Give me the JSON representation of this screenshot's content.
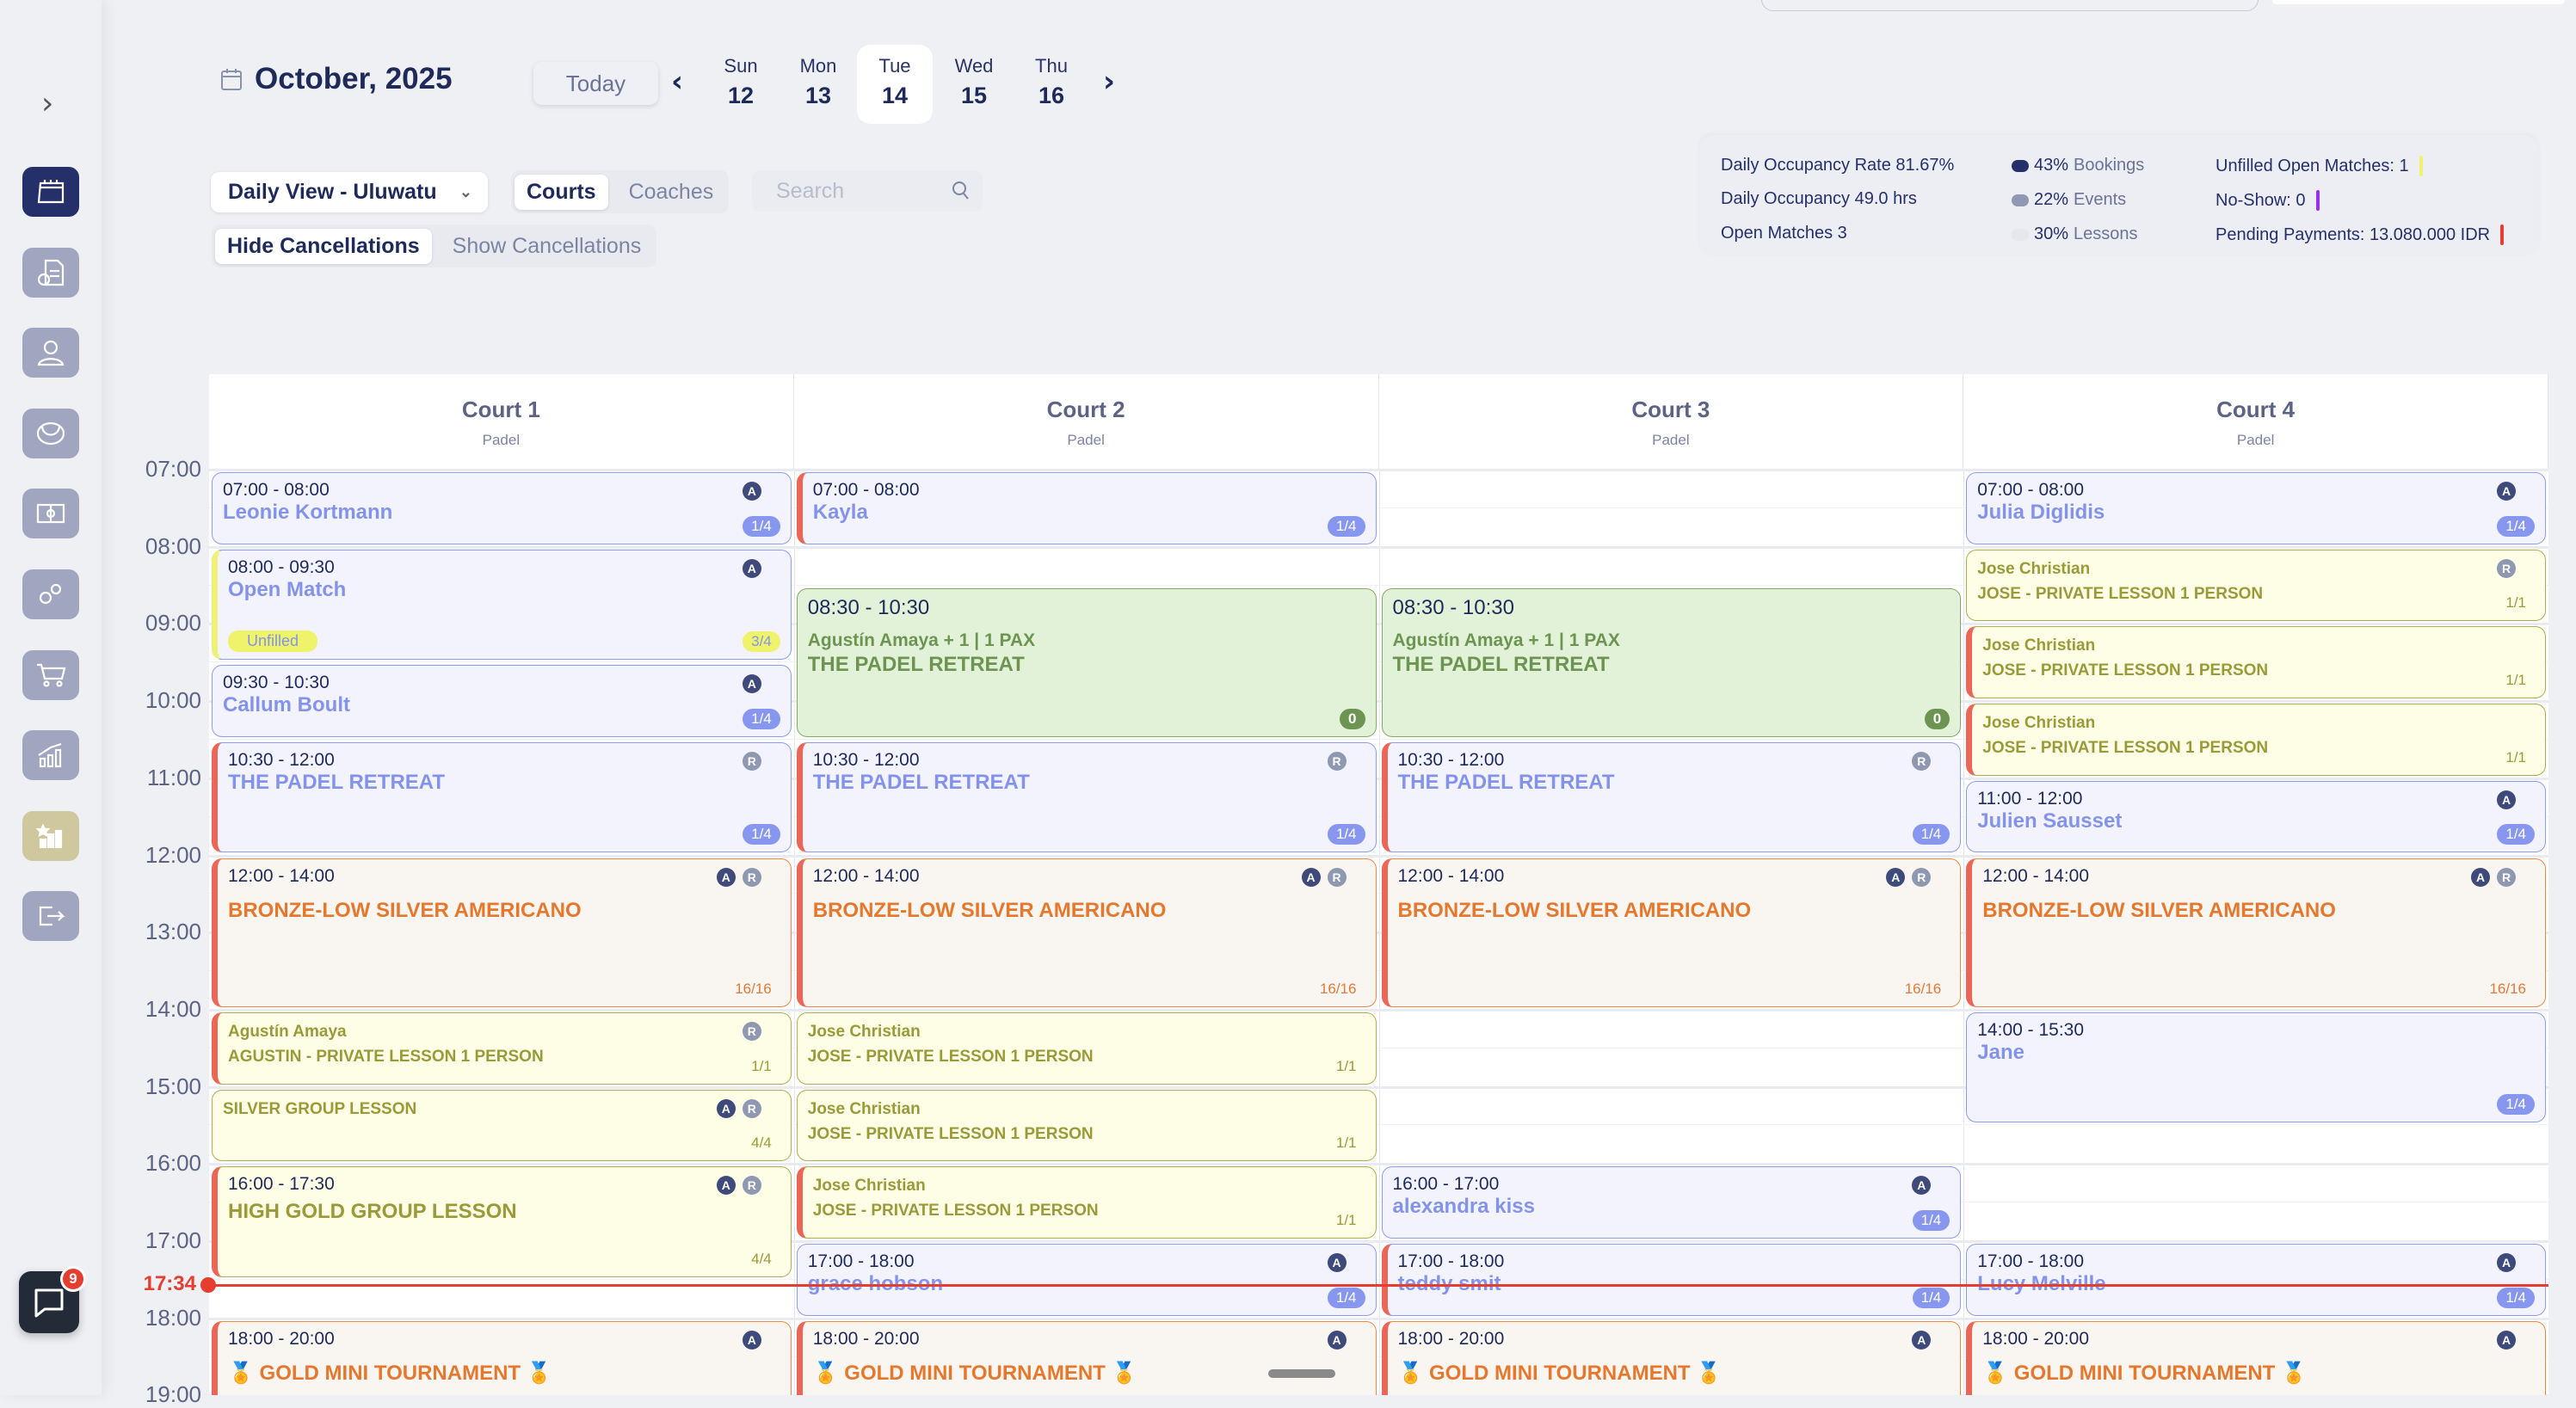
{
  "sidebar": {
    "expand_icon": "chevron-right-icon",
    "items": [
      {
        "icon": "calendar-icon",
        "active": true
      },
      {
        "icon": "invoice-icon"
      },
      {
        "icon": "user-icon"
      },
      {
        "icon": "tennis-ball-icon"
      },
      {
        "icon": "court-icon"
      },
      {
        "icon": "gears-icon"
      },
      {
        "icon": "cart-icon"
      },
      {
        "icon": "analytics-icon"
      },
      {
        "icon": "ranking-icon",
        "highlight": true
      },
      {
        "icon": "logout-icon"
      }
    ]
  },
  "header": {
    "month": "October, 2025",
    "today_label": "Today",
    "days": [
      {
        "name": "Sun",
        "date": "12"
      },
      {
        "name": "Mon",
        "date": "13"
      },
      {
        "name": "Tue",
        "date": "14",
        "selected": true
      },
      {
        "name": "Wed",
        "date": "15"
      },
      {
        "name": "Thu",
        "date": "16"
      }
    ]
  },
  "filters": {
    "view_select": "Daily View - Uluwatu",
    "mode_options": [
      "Courts",
      "Coaches"
    ],
    "mode_selected": "Courts",
    "search_placeholder": "Search",
    "cancellation_options": [
      "Hide Cancellations",
      "Show Cancellations"
    ],
    "cancellation_selected": "Hide Cancellations"
  },
  "stats": {
    "occupancy_rate": "Daily Occupancy Rate 81.67%",
    "occupancy_hours": "Daily Occupancy 49.0 hrs",
    "open_matches": "Open Matches 3",
    "breakdown": [
      {
        "pct": "43%",
        "label": "Bookings",
        "color": "#25306a"
      },
      {
        "pct": "22%",
        "label": "Events",
        "color": "#9199b2"
      },
      {
        "pct": "30%",
        "label": "Lessons",
        "color": "#e6e7ea"
      }
    ],
    "alerts": [
      {
        "text": "Unfilled Open Matches: 1",
        "color": "#eef36a"
      },
      {
        "text": "No-Show: 0",
        "color": "#9b2cf0"
      },
      {
        "text": "Pending Payments: 13.080.000 IDR",
        "color": "#e53d30"
      }
    ]
  },
  "courts": [
    {
      "name": "Court 1",
      "type": "Padel"
    },
    {
      "name": "Court 2",
      "type": "Padel"
    },
    {
      "name": "Court 3",
      "type": "Padel"
    },
    {
      "name": "Court 4",
      "type": "Padel"
    }
  ],
  "hours": [
    "07:00",
    "08:00",
    "09:00",
    "10:00",
    "11:00",
    "12:00",
    "13:00",
    "14:00",
    "15:00",
    "16:00",
    "17:00",
    "18:00",
    "19:00"
  ],
  "now": {
    "label": "17:34",
    "time": 17.567
  },
  "events": [
    {
      "court": 1,
      "start": 7,
      "end": 8,
      "kind": "booking",
      "time": "07:00 - 08:00",
      "title": "Leonie Kortmann",
      "badges": [
        "A"
      ],
      "count": "1/4"
    },
    {
      "court": 1,
      "start": 8,
      "end": 9.5,
      "kind": "booking open",
      "accent": "yellow",
      "time": "08:00 - 09:30",
      "title": "Open Match",
      "badges": [
        "A"
      ],
      "count": "3/4",
      "tag": "Unfilled"
    },
    {
      "court": 1,
      "start": 9.5,
      "end": 10.5,
      "kind": "booking",
      "time": "09:30 - 10:30",
      "title": "Callum Boult",
      "badges": [
        "A"
      ],
      "count": "1/4"
    },
    {
      "court": 1,
      "start": 10.5,
      "end": 12,
      "kind": "booking",
      "accent": "red",
      "time": "10:30 - 12:00",
      "title": "THE PADEL RETREAT",
      "badges": [
        "R"
      ],
      "count": "1/4"
    },
    {
      "court": 1,
      "start": 12,
      "end": 14,
      "kind": "event",
      "accent": "red",
      "time": "12:00 - 14:00",
      "title": "BRONZE-LOW SILVER AMERICANO",
      "badges": [
        "A",
        "R"
      ],
      "count": "16/16"
    },
    {
      "court": 1,
      "start": 14,
      "end": 15,
      "kind": "lesson",
      "accent": "red",
      "title": "Agustín Amaya",
      "sub": "AGUSTIN - PRIVATE LESSON 1 PERSON",
      "badges": [
        "R"
      ],
      "count": "1/1"
    },
    {
      "court": 1,
      "start": 15,
      "end": 16,
      "kind": "lesson",
      "title": "SILVER GROUP LESSON",
      "badges": [
        "A",
        "R"
      ],
      "count": "4/4"
    },
    {
      "court": 1,
      "start": 16,
      "end": 17.5,
      "kind": "lesson big",
      "accent": "red",
      "time": "16:00 - 17:30",
      "title": "HIGH GOLD GROUP LESSON",
      "badges": [
        "A",
        "R"
      ],
      "count": "4/4"
    },
    {
      "court": 1,
      "start": 18,
      "end": 20,
      "kind": "event",
      "accent": "red",
      "time": "18:00 - 20:00",
      "title": "🏅 GOLD MINI TOURNAMENT 🏅",
      "badges": [
        "A"
      ]
    },
    {
      "court": 2,
      "start": 7,
      "end": 8,
      "kind": "booking",
      "accent": "red",
      "time": "07:00 - 08:00",
      "title": "Kayla",
      "count": "1/4"
    },
    {
      "court": 2,
      "start": 8.5,
      "end": 10.5,
      "kind": "green",
      "time": "08:30 - 10:30",
      "sub": "Agustín Amaya + 1 | 1 PAX",
      "title": "THE PADEL RETREAT",
      "count": "0"
    },
    {
      "court": 2,
      "start": 10.5,
      "end": 12,
      "kind": "booking",
      "accent": "red",
      "time": "10:30 - 12:00",
      "title": "THE PADEL RETREAT",
      "badges": [
        "R"
      ],
      "count": "1/4"
    },
    {
      "court": 2,
      "start": 12,
      "end": 14,
      "kind": "event",
      "accent": "red",
      "time": "12:00 - 14:00",
      "title": "BRONZE-LOW SILVER AMERICANO",
      "badges": [
        "A",
        "R"
      ],
      "count": "16/16"
    },
    {
      "court": 2,
      "start": 14,
      "end": 15,
      "kind": "lesson",
      "title": "Jose Christian",
      "sub": "JOSE - PRIVATE LESSON 1 PERSON",
      "count": "1/1"
    },
    {
      "court": 2,
      "start": 15,
      "end": 16,
      "kind": "lesson",
      "title": "Jose Christian",
      "sub": "JOSE - PRIVATE LESSON 1 PERSON",
      "count": "1/1"
    },
    {
      "court": 2,
      "start": 16,
      "end": 17,
      "kind": "lesson",
      "accent": "red",
      "title": "Jose Christian",
      "sub": "JOSE - PRIVATE LESSON 1 PERSON",
      "count": "1/1"
    },
    {
      "court": 2,
      "start": 17,
      "end": 18,
      "kind": "booking",
      "time": "17:00 - 18:00",
      "title": "grace hobson",
      "badges": [
        "A"
      ],
      "count": "1/4"
    },
    {
      "court": 2,
      "start": 18,
      "end": 20,
      "kind": "event",
      "accent": "red",
      "time": "18:00 - 20:00",
      "title": "🏅 GOLD MINI TOURNAMENT 🏅",
      "badges": [
        "A"
      ]
    },
    {
      "court": 3,
      "start": 8.5,
      "end": 10.5,
      "kind": "green",
      "time": "08:30 - 10:30",
      "sub": "Agustín Amaya + 1 | 1 PAX",
      "title": "THE PADEL RETREAT",
      "count": "0"
    },
    {
      "court": 3,
      "start": 10.5,
      "end": 12,
      "kind": "booking",
      "accent": "red",
      "time": "10:30 - 12:00",
      "title": "THE PADEL RETREAT",
      "badges": [
        "R"
      ],
      "count": "1/4"
    },
    {
      "court": 3,
      "start": 12,
      "end": 14,
      "kind": "event",
      "accent": "red",
      "time": "12:00 - 14:00",
      "title": "BRONZE-LOW SILVER AMERICANO",
      "badges": [
        "A",
        "R"
      ],
      "count": "16/16"
    },
    {
      "court": 3,
      "start": 16,
      "end": 17,
      "kind": "booking",
      "time": "16:00 - 17:00",
      "title": "alexandra kiss",
      "badges": [
        "A"
      ],
      "count": "1/4"
    },
    {
      "court": 3,
      "start": 17,
      "end": 18,
      "kind": "booking",
      "accent": "red",
      "time": "17:00 - 18:00",
      "title": "teddy smit",
      "count": "1/4"
    },
    {
      "court": 3,
      "start": 18,
      "end": 20,
      "kind": "event",
      "accent": "red",
      "time": "18:00 - 20:00",
      "title": "🏅 GOLD MINI TOURNAMENT 🏅",
      "badges": [
        "A"
      ]
    },
    {
      "court": 4,
      "start": 7,
      "end": 8,
      "kind": "booking",
      "time": "07:00 - 08:00",
      "title": "Julia Diglidis",
      "badges": [
        "A"
      ],
      "count": "1/4"
    },
    {
      "court": 4,
      "start": 8,
      "end": 9,
      "kind": "lesson",
      "title": "Jose Christian",
      "sub": "JOSE - PRIVATE LESSON 1 PERSON",
      "badges": [
        "R"
      ],
      "count": "1/1"
    },
    {
      "court": 4,
      "start": 9,
      "end": 10,
      "kind": "lesson",
      "accent": "red",
      "title": "Jose Christian",
      "sub": "JOSE - PRIVATE LESSON 1 PERSON",
      "count": "1/1"
    },
    {
      "court": 4,
      "start": 10,
      "end": 11,
      "kind": "lesson",
      "accent": "red",
      "title": "Jose Christian",
      "sub": "JOSE - PRIVATE LESSON 1 PERSON",
      "count": "1/1"
    },
    {
      "court": 4,
      "start": 11,
      "end": 12,
      "kind": "booking",
      "time": "11:00 - 12:00",
      "title": "Julien Sausset",
      "badges": [
        "A"
      ],
      "count": "1/4"
    },
    {
      "court": 4,
      "start": 12,
      "end": 14,
      "kind": "event",
      "accent": "red",
      "time": "12:00 - 14:00",
      "title": "BRONZE-LOW SILVER AMERICANO",
      "badges": [
        "A",
        "R"
      ],
      "count": "16/16"
    },
    {
      "court": 4,
      "start": 14,
      "end": 15.5,
      "kind": "booking",
      "time": "14:00 - 15:30",
      "title": "Jane",
      "count": "1/4"
    },
    {
      "court": 4,
      "start": 17,
      "end": 18,
      "kind": "booking",
      "time": "17:00 - 18:00",
      "title": "Lucy Melville",
      "badges": [
        "A"
      ],
      "count": "1/4"
    },
    {
      "court": 4,
      "start": 18,
      "end": 20,
      "kind": "event",
      "accent": "red",
      "time": "18:00 - 20:00",
      "title": "🏅 GOLD MINI TOURNAMENT 🏅",
      "badges": [
        "A"
      ]
    }
  ],
  "chat": {
    "unread": "9"
  }
}
